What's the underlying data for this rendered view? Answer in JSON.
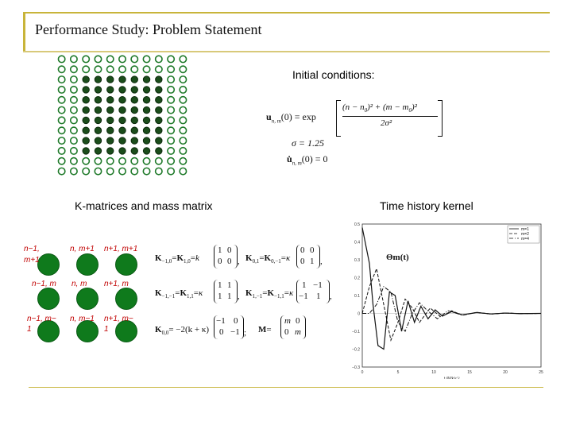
{
  "title": "Performance Study: Problem Statement",
  "labels": {
    "initial_conditions": "Initial conditions:",
    "k_matrices": "K-matrices and mass matrix",
    "time_history": "Time history kernel"
  },
  "equations": {
    "u_lhs": "u",
    "u_sub": "n, m",
    "u_arg": "(0) = exp",
    "numerator": "(n − n",
    "numerator2": ")² + (m − m",
    "numerator3": ")²",
    "zero": "0",
    "denominator": "2σ²",
    "sigma": "σ = 1.25",
    "udot": "u̇",
    "udot_rest": "(0) = 0"
  },
  "lattice_labels": {
    "tl": "n−1,",
    "tl2": "m+1",
    "tc": "n,  m+1",
    "tr": "n+1,  m+1",
    "ml": "n−1,  m",
    "mc": "n,  m",
    "mr": "n+1,  m",
    "bl": "n−1,  m−",
    "bl2": "1",
    "bc": "n,  m−1",
    "br": "n+1,  m−",
    "br2": "1"
  },
  "matrices": {
    "k10_lhs": "K",
    "k10_eq": "=",
    "k01_lhs": "K",
    "k11_lhs": "K",
    "mass_lhs": "M",
    "k00_lhs": "K",
    "k00_eq": "= −2(k + κ)",
    "k_coef": "k",
    "kappa": "κ",
    "kappa2": "κ",
    "kappa3": "κ",
    "one": "1",
    "zero": "0",
    "neg1": "−1",
    "m": "m",
    "comma": ",",
    "semicolon": ";",
    "sub_m10": "−1,0",
    "sub_10": "1,0",
    "sub_0m1": "0,−1",
    "sub_01": "0,1",
    "sub_m1m1": "−1,−1",
    "sub_11": "1,1",
    "sub_1m1": "1,−1",
    "sub_m11": "−1,1",
    "sub_00": "0,0",
    "eq": "="
  },
  "chart_data": {
    "type": "line",
    "title": "Θm(t)",
    "xlabel": "t (M/k)¹ᐟ²",
    "ylabel": "",
    "xlim": [
      0,
      25
    ],
    "ylim": [
      -0.3,
      0.5
    ],
    "x_ticks": [
      "0",
      "5",
      "10",
      "15",
      "20",
      "25"
    ],
    "y_ticks": [
      "0.5",
      "0.4",
      "0.3",
      "0.2",
      "0.1",
      "0",
      "−0.1",
      "−0.2",
      "−0.3"
    ],
    "series": [
      {
        "name": "m=1",
        "style": "solid",
        "x": [
          0,
          1,
          1.5,
          2.2,
          3,
          3.8,
          4.6,
          5.5,
          6.4,
          7.3,
          8.2,
          9.2,
          10.2,
          11.2,
          12.5,
          14,
          16,
          18,
          20,
          22,
          25
        ],
        "y": [
          0.48,
          0.28,
          0.05,
          -0.18,
          -0.2,
          0.12,
          0.1,
          -0.1,
          0.07,
          -0.05,
          0.04,
          -0.03,
          0.02,
          -0.015,
          0.01,
          -0.008,
          0.005,
          -0.003,
          0.002,
          -0.001,
          0
        ]
      },
      {
        "name": "m=2",
        "style": "dashed",
        "x": [
          0,
          1,
          2,
          3,
          4,
          5,
          6,
          7,
          8,
          9.5,
          11,
          12.5,
          14,
          16,
          18,
          20,
          22,
          25
        ],
        "y": [
          0.0,
          0.15,
          0.25,
          0.05,
          -0.15,
          -0.05,
          0.08,
          0.03,
          -0.05,
          0.03,
          -0.02,
          0.015,
          -0.01,
          0.006,
          -0.004,
          0.002,
          -0.001,
          0
        ]
      },
      {
        "name": "m=4",
        "style": "dashdot",
        "x": [
          0,
          1,
          2,
          3,
          4,
          5,
          6,
          7,
          8,
          9,
          10.5,
          12,
          14,
          16,
          18,
          20,
          22,
          25
        ],
        "y": [
          0.0,
          0.0,
          0.05,
          0.15,
          0.12,
          -0.05,
          -0.1,
          0.0,
          0.06,
          0.02,
          -0.03,
          0.015,
          -0.01,
          0.005,
          -0.003,
          0.002,
          -0.001,
          0
        ]
      }
    ]
  }
}
